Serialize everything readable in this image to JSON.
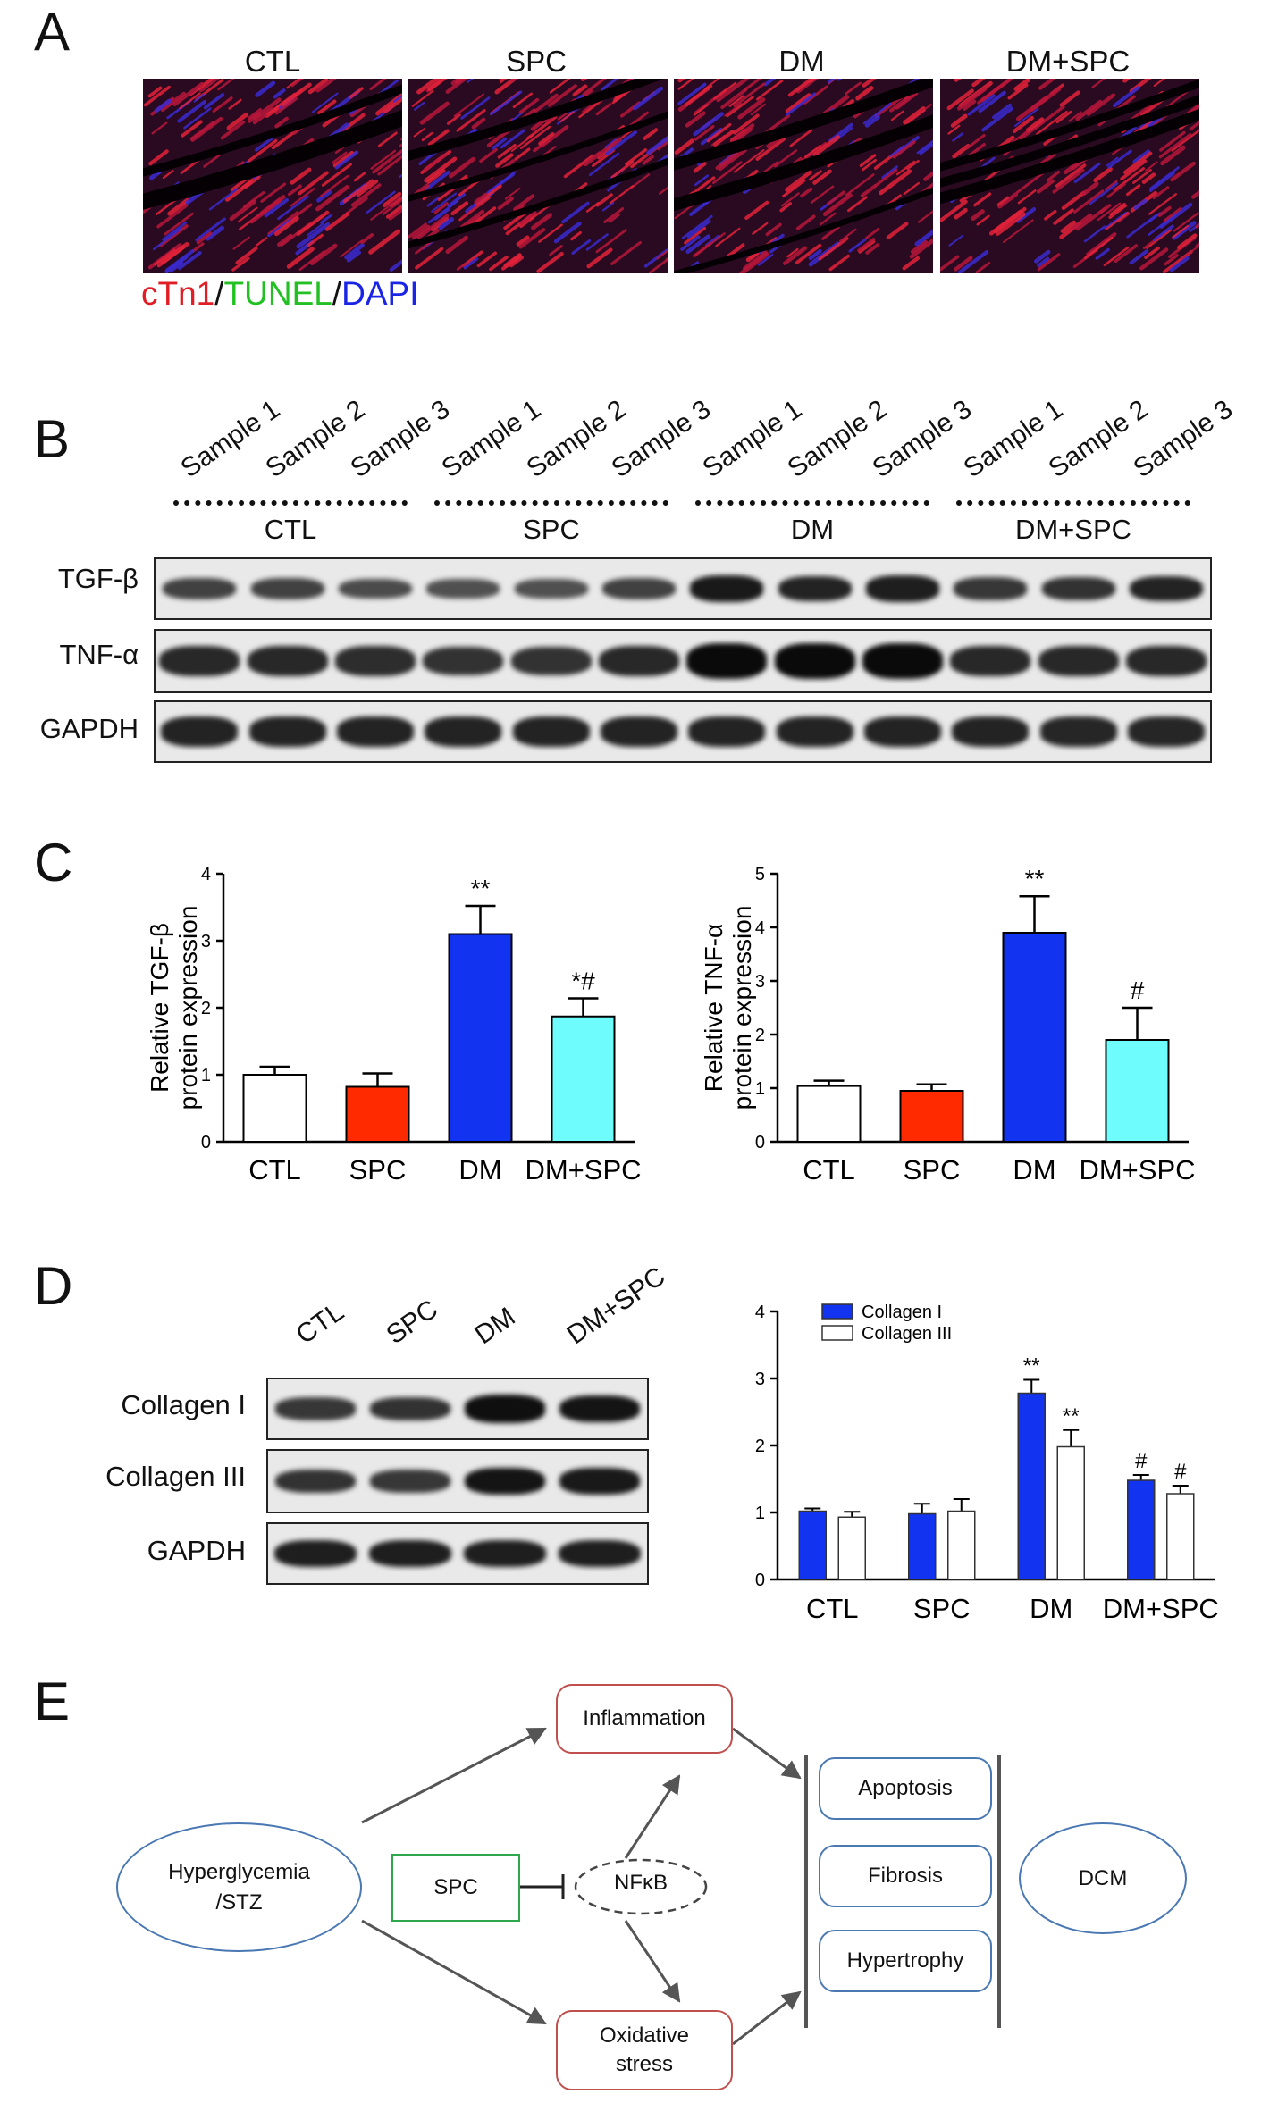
{
  "panels": {
    "a": "A",
    "b": "B",
    "c": "C",
    "d": "D",
    "e": "E"
  },
  "panel_a": {
    "groups": [
      "CTL",
      "SPC",
      "DM",
      "DM+SPC"
    ],
    "stain": {
      "p1": "cTn1",
      "s1": "/",
      "p2": "TUNEL",
      "s2": "/",
      "p3": "DAPI"
    },
    "colors": {
      "ctn1": "#e01e25",
      "tunel": "#22c022",
      "dapi": "#1a24e6"
    }
  },
  "panel_b": {
    "samples": [
      "Sample 1",
      "Sample 2",
      "Sample 3"
    ],
    "groups": [
      "CTL",
      "SPC",
      "DM",
      "DM+SPC"
    ],
    "rows": [
      "TGF-β",
      "TNF-α",
      "GAPDH"
    ],
    "intensity": {
      "tgf": [
        0.45,
        0.45,
        0.35,
        0.3,
        0.3,
        0.45,
        0.85,
        0.75,
        0.8,
        0.55,
        0.6,
        0.75
      ],
      "tnf": [
        0.7,
        0.7,
        0.65,
        0.6,
        0.6,
        0.7,
        1.0,
        1.0,
        1.0,
        0.7,
        0.7,
        0.7
      ],
      "gapdh": [
        0.75,
        0.75,
        0.75,
        0.75,
        0.75,
        0.75,
        0.75,
        0.75,
        0.75,
        0.75,
        0.72,
        0.72
      ]
    }
  },
  "chart_data": [
    {
      "type": "bar",
      "categories": [
        "CTL",
        "SPC",
        "DM",
        "DM+SPC"
      ],
      "values": [
        1.0,
        0.82,
        3.1,
        1.87
      ],
      "errors": [
        0.12,
        0.2,
        0.42,
        0.27
      ],
      "annotations": [
        "",
        "",
        "**",
        "*#"
      ],
      "colors": [
        "#ffffff",
        "#ff2a00",
        "#1233f0",
        "#6ffcfc"
      ],
      "ylabel_line1": "Relative TGF-β",
      "ylabel_line2": "protein expression",
      "ylim": [
        0,
        4
      ],
      "yticks": [
        0,
        1,
        2,
        3,
        4
      ]
    },
    {
      "type": "bar",
      "categories": [
        "CTL",
        "SPC",
        "DM",
        "DM+SPC"
      ],
      "values": [
        1.04,
        0.95,
        3.9,
        1.9
      ],
      "errors": [
        0.1,
        0.12,
        0.68,
        0.6
      ],
      "annotations": [
        "",
        "",
        "**",
        "#"
      ],
      "colors": [
        "#ffffff",
        "#ff2a00",
        "#1233f0",
        "#6ffcfc"
      ],
      "ylabel_line1": "Relative TNF-α",
      "ylabel_line2": "protein expression",
      "ylim": [
        0,
        5
      ],
      "yticks": [
        0,
        1,
        2,
        3,
        4,
        5
      ]
    },
    {
      "type": "bar",
      "categories": [
        "CTL",
        "SPC",
        "DM",
        "DM+SPC"
      ],
      "series": [
        {
          "name": "Collagen I",
          "values": [
            1.02,
            0.98,
            2.78,
            1.48
          ],
          "errors": [
            0.04,
            0.15,
            0.2,
            0.08
          ],
          "annotations": [
            "",
            "",
            "**",
            "#"
          ],
          "color": "#1233f0"
        },
        {
          "name": "Collagen III",
          "values": [
            0.93,
            1.02,
            1.98,
            1.28
          ],
          "errors": [
            0.08,
            0.18,
            0.25,
            0.12
          ],
          "annotations": [
            "",
            "",
            "**",
            "#"
          ],
          "color": "#ffffff"
        }
      ],
      "ylim": [
        0,
        4
      ],
      "yticks": [
        0,
        1,
        2,
        3,
        4
      ],
      "legend": "top-left"
    }
  ],
  "panel_d_blot": {
    "lanes": [
      "CTL",
      "SPC",
      "DM",
      "DM+SPC"
    ],
    "rows": [
      "Collagen I",
      "Collagen III",
      "GAPDH"
    ],
    "intensity": {
      "col1": [
        0.55,
        0.6,
        0.95,
        0.9
      ],
      "col3": [
        0.6,
        0.55,
        0.9,
        0.85
      ],
      "gapdh": [
        0.8,
        0.8,
        0.8,
        0.8
      ]
    }
  },
  "panel_e": {
    "hyper": [
      "Hyperglycemia",
      "/STZ"
    ],
    "spc": "SPC",
    "nfkb": "NFκB",
    "inflammation": "Inflammation",
    "oxidative": [
      "Oxidative",
      "stress"
    ],
    "apoptosis": "Apoptosis",
    "fibrosis": "Fibrosis",
    "hypertrophy": "Hypertrophy",
    "dcm": "DCM",
    "colors": {
      "red_box": "#c0504d",
      "blue_box": "#4a78b3",
      "green_box": "#2ea84a",
      "arrow": "#555555"
    }
  }
}
